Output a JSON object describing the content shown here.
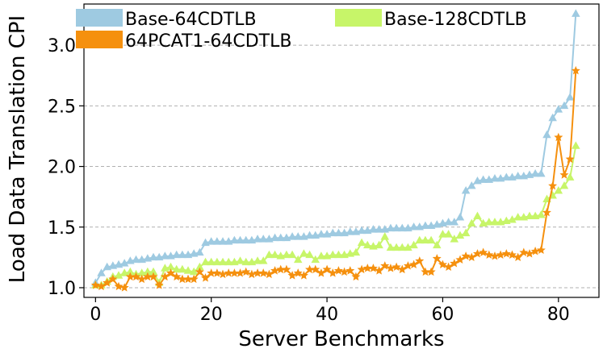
{
  "chart_data": {
    "type": "line",
    "title": "",
    "xlabel": "Server Benchmarks",
    "ylabel": "Load Data Translation CPI",
    "xlim": [
      -2,
      87
    ],
    "ylim": [
      0.92,
      3.34
    ],
    "x_ticks": [
      0,
      20,
      40,
      60,
      80
    ],
    "y_ticks": [
      1.0,
      1.5,
      2.0,
      2.5,
      3.0
    ],
    "x_tick_labels": [
      "0",
      "20",
      "40",
      "60",
      "80"
    ],
    "y_tick_labels": [
      "1.0",
      "1.5",
      "2.0",
      "2.5",
      "3.0"
    ],
    "grid": "horizontal-dashed",
    "legend_placement": "top",
    "series": [
      {
        "name": "Base-64CDTLB",
        "color": "#9ecae1",
        "marker": "triangle",
        "values": [
          1.04,
          1.12,
          1.17,
          1.18,
          1.19,
          1.2,
          1.22,
          1.23,
          1.23,
          1.24,
          1.25,
          1.25,
          1.26,
          1.26,
          1.27,
          1.27,
          1.27,
          1.28,
          1.29,
          1.37,
          1.38,
          1.38,
          1.38,
          1.38,
          1.39,
          1.39,
          1.39,
          1.39,
          1.4,
          1.4,
          1.4,
          1.41,
          1.41,
          1.41,
          1.42,
          1.42,
          1.42,
          1.43,
          1.43,
          1.44,
          1.44,
          1.45,
          1.45,
          1.45,
          1.46,
          1.46,
          1.47,
          1.47,
          1.48,
          1.48,
          1.48,
          1.49,
          1.49,
          1.49,
          1.49,
          1.5,
          1.5,
          1.51,
          1.51,
          1.52,
          1.53,
          1.54,
          1.54,
          1.58,
          1.8,
          1.84,
          1.88,
          1.89,
          1.89,
          1.9,
          1.9,
          1.91,
          1.91,
          1.92,
          1.92,
          1.93,
          1.94,
          1.94,
          2.26,
          2.4,
          2.47,
          2.5,
          2.57,
          3.26
        ]
      },
      {
        "name": "Base-128CDTLB",
        "color": "#c7f569",
        "marker": "triangle",
        "values": [
          1.02,
          1.02,
          1.05,
          1.09,
          1.1,
          1.12,
          1.13,
          1.11,
          1.12,
          1.13,
          1.13,
          1.04,
          1.16,
          1.17,
          1.15,
          1.15,
          1.14,
          1.13,
          1.17,
          1.21,
          1.21,
          1.21,
          1.21,
          1.21,
          1.21,
          1.22,
          1.21,
          1.21,
          1.22,
          1.22,
          1.27,
          1.27,
          1.26,
          1.27,
          1.27,
          1.23,
          1.28,
          1.27,
          1.23,
          1.26,
          1.26,
          1.27,
          1.27,
          1.27,
          1.28,
          1.29,
          1.37,
          1.35,
          1.34,
          1.35,
          1.42,
          1.33,
          1.33,
          1.33,
          1.33,
          1.35,
          1.39,
          1.39,
          1.39,
          1.35,
          1.44,
          1.44,
          1.4,
          1.43,
          1.45,
          1.53,
          1.59,
          1.53,
          1.54,
          1.54,
          1.54,
          1.55,
          1.56,
          1.58,
          1.58,
          1.59,
          1.59,
          1.6,
          1.73,
          1.76,
          1.8,
          1.84,
          1.91,
          2.17
        ]
      },
      {
        "name": "64PCAT1-64CDTLB",
        "color": "#f5900e",
        "marker": "star",
        "values": [
          1.02,
          1.01,
          1.04,
          1.07,
          1.01,
          1.0,
          1.09,
          1.09,
          1.07,
          1.09,
          1.09,
          1.02,
          1.09,
          1.12,
          1.09,
          1.07,
          1.07,
          1.07,
          1.13,
          1.08,
          1.12,
          1.12,
          1.11,
          1.12,
          1.12,
          1.12,
          1.13,
          1.11,
          1.12,
          1.12,
          1.11,
          1.14,
          1.15,
          1.15,
          1.1,
          1.12,
          1.1,
          1.15,
          1.15,
          1.12,
          1.15,
          1.12,
          1.14,
          1.13,
          1.14,
          1.09,
          1.15,
          1.16,
          1.16,
          1.14,
          1.18,
          1.16,
          1.17,
          1.15,
          1.18,
          1.19,
          1.22,
          1.13,
          1.13,
          1.24,
          1.19,
          1.17,
          1.2,
          1.23,
          1.26,
          1.25,
          1.28,
          1.29,
          1.27,
          1.26,
          1.27,
          1.28,
          1.27,
          1.25,
          1.29,
          1.28,
          1.3,
          1.31,
          1.62,
          1.84,
          2.24,
          1.93,
          2.06,
          2.79
        ]
      }
    ]
  }
}
